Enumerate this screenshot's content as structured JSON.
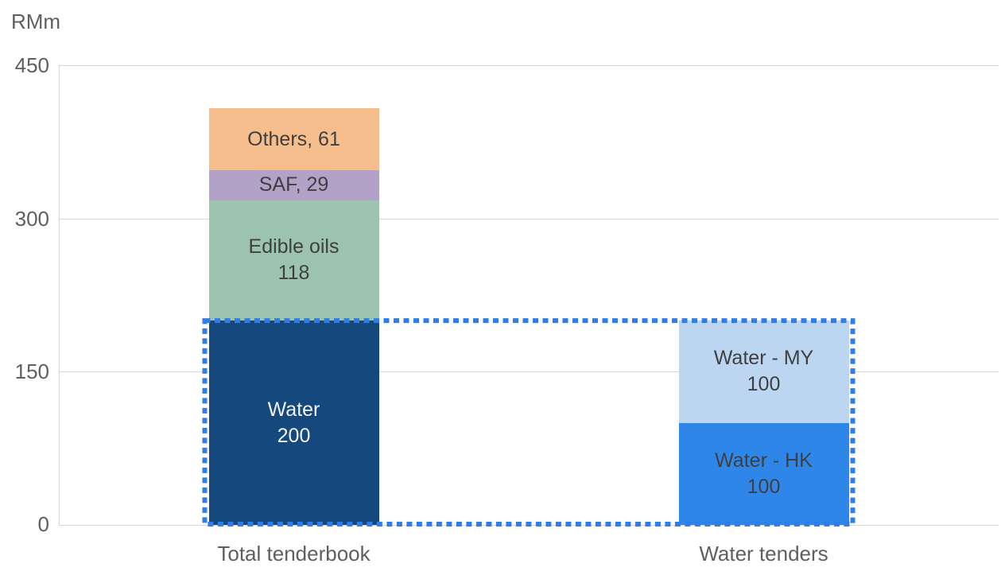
{
  "chart_data": {
    "type": "bar",
    "stacked": true,
    "title": "",
    "unit_label": "RMm",
    "xlabel": "",
    "ylabel": "RMm",
    "ylim": [
      0,
      450
    ],
    "y_ticks": [
      0,
      150,
      300,
      450
    ],
    "gridlines": true,
    "legend_position": "none",
    "categories": [
      "Total tenderbook",
      "Water tenders"
    ],
    "bars": [
      {
        "category": "Total tenderbook",
        "total": 408,
        "segments": [
          {
            "name": "Water",
            "value": 200,
            "label_lines": [
              "Water",
              "200"
            ],
            "color": "#15497E",
            "text_color": "#F2F2F2"
          },
          {
            "name": "Edible oils",
            "value": 118,
            "label_lines": [
              "Edible oils",
              "118"
            ],
            "color": "#9CC3AE",
            "text_color": "#3F3F3F"
          },
          {
            "name": "SAF",
            "value": 29,
            "label_lines": [
              "SAF, 29"
            ],
            "color": "#B2A2C8",
            "text_color": "#3F3F3F"
          },
          {
            "name": "Others",
            "value": 61,
            "label_lines": [
              "Others, 61"
            ],
            "color": "#F6BE8D",
            "text_color": "#3F3F3F"
          }
        ]
      },
      {
        "category": "Water tenders",
        "total": 200,
        "segments": [
          {
            "name": "Water - HK",
            "value": 100,
            "label_lines": [
              "Water - HK",
              "100"
            ],
            "color": "#2E86E9",
            "text_color": "#3F3F3F"
          },
          {
            "name": "Water - MY",
            "value": 100,
            "label_lines": [
              "Water - MY",
              "100"
            ],
            "color": "#BCD6F2",
            "text_color": "#3F3F3F"
          }
        ]
      }
    ],
    "highlight_box": {
      "from_value": 0,
      "to_value": 200,
      "spans_categories": [
        "Total tenderbook",
        "Water tenders"
      ],
      "style": "square-dashed",
      "color": "#2E7DE9"
    },
    "axis_color": "#5F5F5F",
    "gridline_color": "#D9D9D9"
  }
}
